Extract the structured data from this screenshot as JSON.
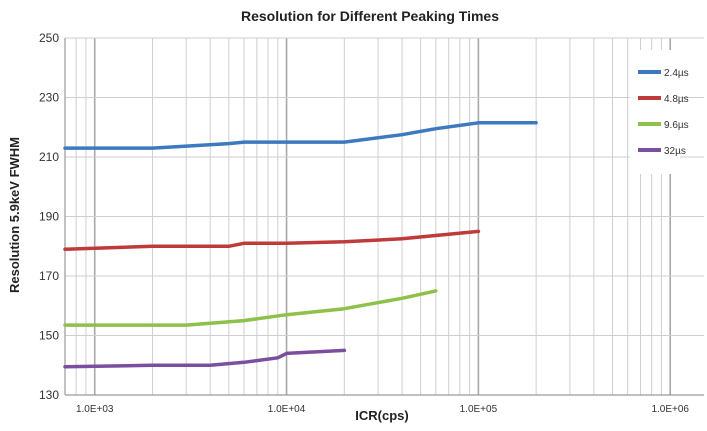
{
  "chart_data": {
    "type": "line",
    "title": "Resolution for Different Peaking Times",
    "xlabel": "ICR(cps)",
    "ylabel": "Resolution 5.9keV FWHM",
    "xscale": "log",
    "xlim": [
      700,
      1500000
    ],
    "ylim": [
      130,
      250
    ],
    "yticks": [
      130,
      150,
      170,
      190,
      210,
      230,
      250
    ],
    "xticks": [
      1000,
      10000,
      100000,
      1000000
    ],
    "xtick_labels": [
      "1.0E+03",
      "1.0E+04",
      "1.0E+05",
      "1.0E+06"
    ],
    "grid": true,
    "legend_position": "right",
    "series": [
      {
        "name": "2.4µs",
        "color": "#3d79bf",
        "x": [
          700,
          2000,
          5000,
          6000,
          10000,
          20000,
          40000,
          60000,
          100000,
          200000
        ],
        "y": [
          213,
          213,
          214.5,
          215,
          215,
          215,
          217.5,
          219.5,
          221.5,
          221.5
        ]
      },
      {
        "name": "4.8µs",
        "color": "#bf3b3b",
        "x": [
          700,
          2000,
          5000,
          6000,
          10000,
          20000,
          40000,
          70000,
          100000
        ],
        "y": [
          179,
          180,
          180,
          181,
          181,
          181.5,
          182.5,
          184,
          185
        ]
      },
      {
        "name": "9.6µs",
        "color": "#8ec14a",
        "x": [
          700,
          3000,
          6000,
          10000,
          20000,
          40000,
          60000
        ],
        "y": [
          153.5,
          153.5,
          155,
          157,
          159,
          162.5,
          165
        ]
      },
      {
        "name": "32µs",
        "color": "#7b4f9e",
        "x": [
          700,
          2000,
          4000,
          6000,
          9000,
          10000,
          20000
        ],
        "y": [
          139.5,
          140,
          140,
          141,
          142.5,
          144,
          145
        ]
      }
    ]
  }
}
